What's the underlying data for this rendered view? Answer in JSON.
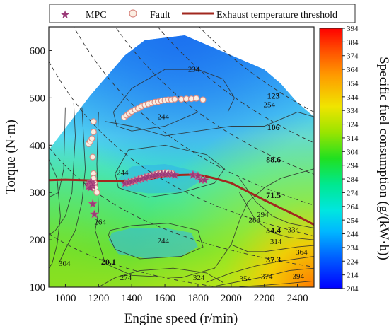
{
  "chart_data": {
    "type": "heatmap",
    "xlabel": "Engine speed (r/min)",
    "ylabel": "Torque (N·m)",
    "xlim": [
      900,
      2500
    ],
    "ylim": [
      100,
      650
    ],
    "x_ticks": [
      1000,
      1200,
      1400,
      1600,
      1800,
      2000,
      2200,
      2400
    ],
    "y_ticks": [
      100,
      200,
      300,
      400,
      500,
      600
    ],
    "colorbar": {
      "label": "Specific fuel consumption (g/(kW·h))",
      "range": [
        204,
        394
      ],
      "ticks": [
        204,
        214,
        224,
        234,
        244,
        254,
        264,
        274,
        284,
        294,
        304,
        314,
        324,
        334,
        344,
        354,
        364,
        374,
        384,
        394
      ]
    },
    "legend": {
      "placement": "top",
      "entries": [
        {
          "label": "MPC",
          "marker": "star",
          "color": "#9b3a78"
        },
        {
          "label": "Fault",
          "marker": "circle",
          "color": "#d98a83"
        },
        {
          "label": "Exhaust temperature threshold",
          "marker": "line",
          "color": "#a1281f"
        }
      ]
    },
    "contour_labels": [
      {
        "text": "234",
        "x": 1775,
        "y": 555
      },
      {
        "text": "254",
        "x": 2230,
        "y": 480
      },
      {
        "text": "244",
        "x": 1590,
        "y": 455
      },
      {
        "text": "244",
        "x": 1345,
        "y": 337
      },
      {
        "text": "264",
        "x": 1210,
        "y": 232
      },
      {
        "text": "244",
        "x": 1590,
        "y": 193
      },
      {
        "text": "294",
        "x": 2190,
        "y": 248
      },
      {
        "text": "284",
        "x": 2140,
        "y": 237
      },
      {
        "text": "334",
        "x": 2375,
        "y": 216
      },
      {
        "text": "314",
        "x": 2270,
        "y": 191
      },
      {
        "text": "364",
        "x": 2425,
        "y": 169
      },
      {
        "text": "304",
        "x": 995,
        "y": 145
      },
      {
        "text": "274",
        "x": 1365,
        "y": 115
      },
      {
        "text": "324",
        "x": 1805,
        "y": 115
      },
      {
        "text": "354",
        "x": 2085,
        "y": 113
      },
      {
        "text": "374",
        "x": 2215,
        "y": 117
      },
      {
        "text": "394",
        "x": 2405,
        "y": 118
      }
    ],
    "power_labels": [
      {
        "text": "123",
        "x": 2255,
        "y": 498
      },
      {
        "text": "106",
        "x": 2255,
        "y": 432
      },
      {
        "text": "88.6",
        "x": 2255,
        "y": 364
      },
      {
        "text": "71.5",
        "x": 2255,
        "y": 288
      },
      {
        "text": "54.4",
        "x": 2255,
        "y": 214
      },
      {
        "text": "37.3",
        "x": 2255,
        "y": 152
      },
      {
        "text": "20.1",
        "x": 1260,
        "y": 148
      }
    ],
    "series": [
      {
        "name": "Exhaust temperature threshold",
        "type": "line",
        "x": [
          900,
          1000,
          1100,
          1200,
          1300,
          1400,
          1500,
          1600,
          1700,
          1800,
          1900,
          2000,
          2100,
          2200,
          2300,
          2400,
          2500
        ],
        "y": [
          326,
          327,
          326,
          325,
          324,
          325,
          328,
          335,
          337,
          338,
          330,
          320,
          302,
          284,
          267,
          250,
          232
        ]
      },
      {
        "name": "MPC",
        "type": "scatter",
        "x": [
          1175,
          1165,
          1140,
          1145,
          1150,
          1155,
          1160,
          1165,
          1150,
          1360,
          1380,
          1400,
          1420,
          1440,
          1460,
          1480,
          1500,
          1520,
          1540,
          1560,
          1580,
          1600,
          1620,
          1640,
          1660,
          1770,
          1800,
          1820,
          1840
        ],
        "y": [
          254,
          276,
          313,
          317,
          320,
          322,
          318,
          314,
          310,
          319,
          321,
          323,
          325,
          327,
          329,
          331,
          333,
          335,
          336,
          338,
          339,
          339,
          339,
          338,
          337,
          337,
          335,
          326,
          326
        ]
      },
      {
        "name": "Fault",
        "type": "scatter",
        "x": [
          1170,
          1170,
          1140,
          1150,
          1160,
          1165,
          1170,
          1170,
          1175,
          1180,
          1190,
          1355,
          1370,
          1385,
          1400,
          1420,
          1440,
          1460,
          1480,
          1500,
          1520,
          1540,
          1560,
          1580,
          1600,
          1620,
          1640,
          1660,
          1700,
          1730,
          1760,
          1790,
          1830,
          1380,
          1400,
          1420,
          1440,
          1460,
          1480,
          1500,
          1520,
          1540,
          1560,
          1580,
          1600,
          1620,
          1640
        ],
        "y": [
          450,
          428,
          403,
          408,
          414,
          375,
          340,
          330,
          320,
          310,
          300,
          459,
          463,
          467,
          471,
          475,
          478,
          482,
          485,
          487,
          489,
          491,
          492,
          494,
          495,
          496,
          496,
          497,
          497,
          498,
          498,
          499,
          496,
          320,
          323,
          325,
          328,
          330,
          332,
          334,
          336,
          338,
          340,
          341,
          342,
          342,
          341
        ]
      }
    ]
  }
}
